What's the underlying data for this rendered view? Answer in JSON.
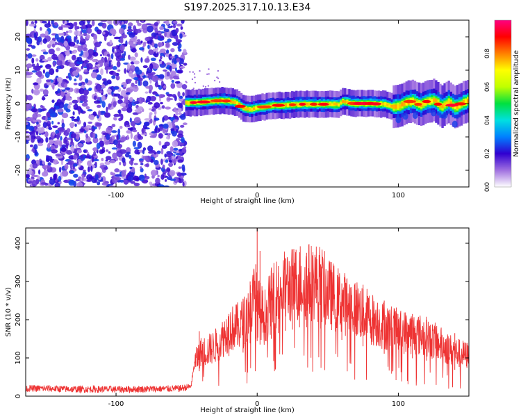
{
  "title": "S197.2025.317.10.13.E34",
  "chart_data": [
    {
      "type": "heatmap",
      "name": "spectrogram",
      "xlabel": "Height of straight line (km)",
      "ylabel": "Frequency (Hz)",
      "xlim": [
        -164,
        150
      ],
      "ylim": [
        -25,
        25
      ],
      "xticks": [
        -100,
        0,
        100
      ],
      "xtick_labels": [
        "-100",
        "0",
        "100"
      ],
      "yticks": [
        -20,
        -10,
        0,
        10,
        20
      ],
      "ytick_labels": [
        "-20",
        "-10",
        "0",
        "10",
        "20"
      ],
      "signal_onset_km": -51,
      "noise_region_km": [
        -164,
        -51
      ],
      "signal_trace": {
        "x": [
          -51,
          -45,
          -40,
          -35,
          -30,
          -25,
          -20,
          -15,
          -10,
          -5,
          0,
          5,
          10,
          20,
          30,
          40,
          50,
          57,
          60,
          63,
          66,
          70,
          80,
          90,
          95,
          100,
          105,
          110,
          115,
          120,
          125,
          130,
          135,
          140,
          145,
          150
        ],
        "y": [
          0.2,
          0.3,
          0.4,
          0.6,
          0.8,
          0.9,
          0.7,
          0.2,
          -1.5,
          -1.8,
          -1.2,
          -1.0,
          -0.6,
          -0.5,
          -0.2,
          -0.2,
          -0.2,
          -0.3,
          0.6,
          0.4,
          0.1,
          0.0,
          0.0,
          -0.2,
          -1.0,
          -0.8,
          0.3,
          0.8,
          -0.5,
          0.6,
          1.0,
          -1.0,
          0.5,
          -1.2,
          0.2,
          1.0
        ]
      },
      "colorbar": {
        "label": "Normalized spectral amplitude",
        "range": [
          0.0,
          1.0
        ],
        "ticks": [
          0.0,
          0.2,
          0.4,
          0.6,
          0.8
        ],
        "tick_labels": [
          "0.0",
          "0.2",
          "0.4",
          "0.6",
          "0.8"
        ],
        "colors": [
          "#ffffff",
          "#a070e0",
          "#3000d0",
          "#0080ff",
          "#00e0e0",
          "#00e040",
          "#c0ff00",
          "#ffff00",
          "#ff8000",
          "#ff0000",
          "#ff0080"
        ]
      }
    },
    {
      "type": "line",
      "name": "snr",
      "xlabel": "Height of straight line (km)",
      "ylabel": "SNR (10 * v/v)",
      "xlim": [
        -164,
        150
      ],
      "ylim": [
        0,
        440
      ],
      "xticks": [
        -100,
        0,
        100
      ],
      "xtick_labels": [
        "-100",
        "0",
        "100"
      ],
      "yticks": [
        0,
        100,
        200,
        300,
        400
      ],
      "ytick_labels": [
        "0",
        "100",
        "200",
        "300",
        "400"
      ],
      "series": [
        {
          "name": "SNR",
          "color": "#ee3333",
          "x": [
            -164,
            -150,
            -130,
            -110,
            -90,
            -70,
            -55,
            -47,
            -44,
            -40,
            -35,
            -30,
            -25,
            -20,
            -15,
            -10,
            -5,
            -2,
            0,
            1,
            3,
            5,
            10,
            15,
            20,
            25,
            30,
            35,
            40,
            45,
            50,
            60,
            70,
            80,
            90,
            100,
            110,
            120,
            130,
            140,
            150
          ],
          "y": [
            20,
            20,
            18,
            18,
            18,
            19,
            20,
            25,
            90,
            115,
            120,
            130,
            150,
            175,
            180,
            190,
            230,
            260,
            240,
            230,
            220,
            205,
            250,
            275,
            285,
            290,
            300,
            300,
            300,
            295,
            270,
            245,
            230,
            205,
            185,
            170,
            165,
            155,
            135,
            115,
            105
          ]
        }
      ],
      "peaks": {
        "x": [
          -41,
          -20,
          -10,
          -5,
          -1,
          0,
          2,
          10,
          15,
          20,
          25,
          30,
          35,
          45,
          60,
          75,
          90,
          110,
          120,
          140,
          150
        ],
        "y": [
          170,
          215,
          255,
          300,
          345,
          440,
          380,
          330,
          340,
          360,
          350,
          355,
          375,
          345,
          295,
          280,
          250,
          215,
          200,
          165,
          180
        ]
      }
    }
  ]
}
